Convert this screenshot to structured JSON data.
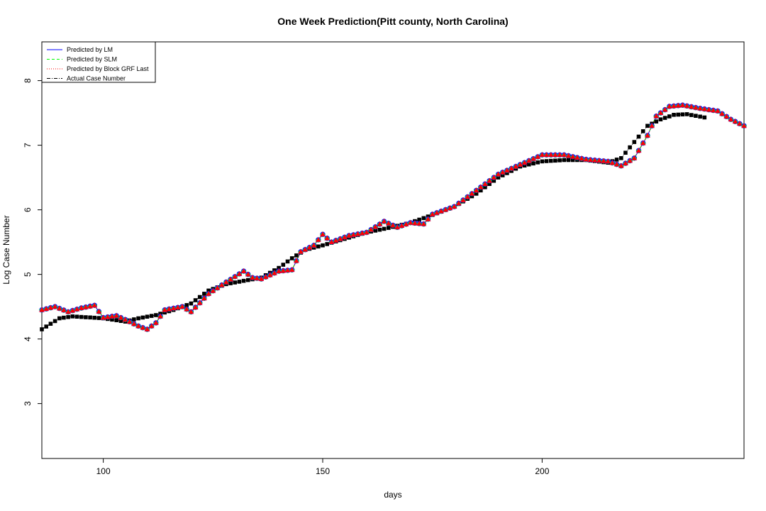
{
  "chart_data": {
    "type": "line",
    "title": "One Week Prediction(Pitt county, North Carolina)",
    "xlabel": "days",
    "ylabel": "Log Case Number",
    "xlim": [
      86,
      246
    ],
    "ylim": [
      2.15,
      8.6
    ],
    "xticks": [
      100,
      150,
      200
    ],
    "yticks": [
      3,
      4,
      5,
      6,
      7,
      8
    ],
    "grid": false,
    "legend_position": "top-left",
    "legend": [
      {
        "label": "Predicted by LM",
        "color": "#0000ff",
        "dash": "solid"
      },
      {
        "label": "Predicted by SLM",
        "color": "#00ff00",
        "dash": "dashed"
      },
      {
        "label": "Predicted by Block GRF Last",
        "color": "#ff0000",
        "dash": "dotted"
      },
      {
        "label": "Actual Case Number",
        "color": "#000000",
        "dash": "dotdash"
      }
    ],
    "actual_knots": [
      [
        86,
        4.15
      ],
      [
        90,
        4.32
      ],
      [
        93,
        4.35
      ],
      [
        100,
        4.32
      ],
      [
        105,
        4.27
      ],
      [
        108,
        4.32
      ],
      [
        112,
        4.37
      ],
      [
        116,
        4.45
      ],
      [
        120,
        4.55
      ],
      [
        124,
        4.75
      ],
      [
        128,
        4.85
      ],
      [
        132,
        4.9
      ],
      [
        136,
        4.95
      ],
      [
        140,
        5.1
      ],
      [
        143,
        5.25
      ],
      [
        146,
        5.38
      ],
      [
        150,
        5.45
      ],
      [
        155,
        5.55
      ],
      [
        160,
        5.65
      ],
      [
        165,
        5.72
      ],
      [
        170,
        5.8
      ],
      [
        175,
        5.92
      ],
      [
        180,
        6.05
      ],
      [
        185,
        6.25
      ],
      [
        190,
        6.5
      ],
      [
        195,
        6.67
      ],
      [
        200,
        6.75
      ],
      [
        205,
        6.77
      ],
      [
        210,
        6.77
      ],
      [
        215,
        6.73
      ],
      [
        218,
        6.8
      ],
      [
        221,
        7.05
      ],
      [
        224,
        7.3
      ],
      [
        227,
        7.4
      ],
      [
        230,
        7.47
      ],
      [
        233,
        7.48
      ],
      [
        237,
        7.43
      ]
    ],
    "predicted_knots": [
      [
        86,
        4.45
      ],
      [
        89,
        4.5
      ],
      [
        92,
        4.42
      ],
      [
        95,
        4.48
      ],
      [
        98,
        4.52
      ],
      [
        100,
        4.33
      ],
      [
        103,
        4.36
      ],
      [
        105,
        4.3
      ],
      [
        108,
        4.2
      ],
      [
        110,
        4.15
      ],
      [
        112,
        4.25
      ],
      [
        114,
        4.45
      ],
      [
        118,
        4.5
      ],
      [
        120,
        4.42
      ],
      [
        124,
        4.7
      ],
      [
        128,
        4.88
      ],
      [
        132,
        5.05
      ],
      [
        134,
        4.95
      ],
      [
        136,
        4.93
      ],
      [
        140,
        5.05
      ],
      [
        143,
        5.07
      ],
      [
        145,
        5.35
      ],
      [
        148,
        5.45
      ],
      [
        150,
        5.62
      ],
      [
        152,
        5.5
      ],
      [
        156,
        5.6
      ],
      [
        160,
        5.65
      ],
      [
        164,
        5.82
      ],
      [
        167,
        5.73
      ],
      [
        170,
        5.8
      ],
      [
        173,
        5.78
      ],
      [
        175,
        5.93
      ],
      [
        180,
        6.05
      ],
      [
        185,
        6.3
      ],
      [
        190,
        6.55
      ],
      [
        195,
        6.7
      ],
      [
        200,
        6.85
      ],
      [
        205,
        6.85
      ],
      [
        210,
        6.78
      ],
      [
        215,
        6.75
      ],
      [
        218,
        6.68
      ],
      [
        221,
        6.8
      ],
      [
        224,
        7.15
      ],
      [
        226,
        7.45
      ],
      [
        229,
        7.6
      ],
      [
        232,
        7.62
      ],
      [
        236,
        7.57
      ],
      [
        240,
        7.53
      ],
      [
        243,
        7.4
      ],
      [
        246,
        7.3
      ]
    ]
  }
}
